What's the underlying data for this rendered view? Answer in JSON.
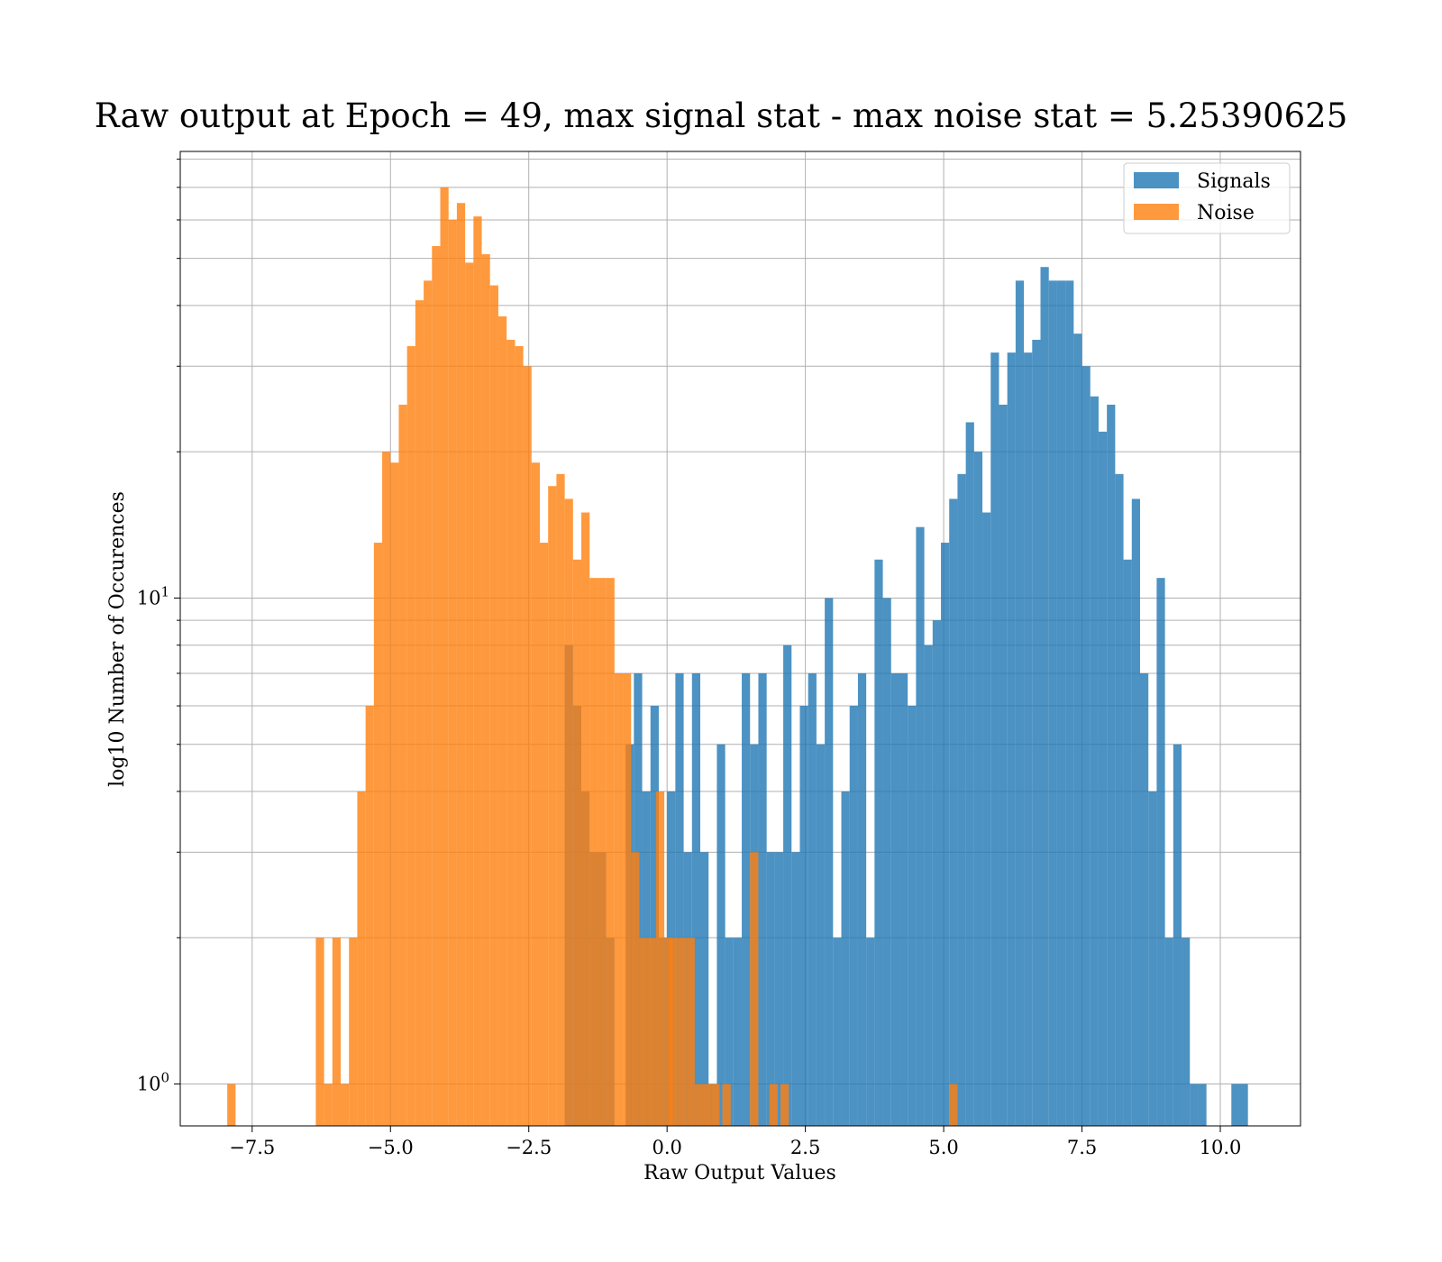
{
  "chart_data": {
    "type": "bar",
    "title": "Raw output at Epoch = 49, max signal stat - max noise stat = 5.25390625",
    "xlabel": "Raw Output Values",
    "ylabel": "log10 Number of Occurences",
    "xlim": [
      -8.8,
      11.45
    ],
    "ylim": [
      0.82,
      83
    ],
    "yscale": "log",
    "grid": true,
    "grid_minor_y": true,
    "x_ticks": [
      -7.5,
      -5.0,
      -2.5,
      0.0,
      2.5,
      5.0,
      7.5,
      10.0
    ],
    "x_tick_labels": [
      "−7.5",
      "−5.0",
      "−2.5",
      "0.0",
      "2.5",
      "5.0",
      "7.5",
      "10.0"
    ],
    "y_ticks": [
      {
        "value": 1,
        "base": "10",
        "exp": "0"
      },
      {
        "value": 10,
        "base": "10",
        "exp": "1"
      }
    ],
    "legend": {
      "position": "top-right"
    },
    "series": [
      {
        "name": "Signals",
        "color": "#1f77b4",
        "bins": [
          [
            -1.85,
            8
          ],
          [
            -1.7,
            6
          ],
          [
            -1.55,
            4
          ],
          [
            -1.4,
            3
          ],
          [
            -1.25,
            3
          ],
          [
            -1.1,
            2
          ],
          [
            -0.75,
            5
          ],
          [
            -0.6,
            7
          ],
          [
            -0.45,
            4
          ],
          [
            -0.3,
            6
          ],
          [
            -0.15,
            2
          ],
          [
            0.0,
            4
          ],
          [
            0.15,
            7
          ],
          [
            0.3,
            3
          ],
          [
            0.45,
            7
          ],
          [
            0.6,
            3
          ],
          [
            0.75,
            1
          ],
          [
            0.9,
            5
          ],
          [
            1.05,
            2
          ],
          [
            1.2,
            2
          ],
          [
            1.35,
            7
          ],
          [
            1.5,
            5
          ],
          [
            1.65,
            7
          ],
          [
            1.8,
            3
          ],
          [
            1.95,
            3
          ],
          [
            2.1,
            8
          ],
          [
            2.25,
            3
          ],
          [
            2.4,
            6
          ],
          [
            2.55,
            7
          ],
          [
            2.7,
            5
          ],
          [
            2.85,
            10
          ],
          [
            3.0,
            2
          ],
          [
            3.15,
            4
          ],
          [
            3.3,
            6
          ],
          [
            3.45,
            7
          ],
          [
            3.6,
            2
          ],
          [
            3.75,
            12
          ],
          [
            3.9,
            10
          ],
          [
            4.05,
            7
          ],
          [
            4.2,
            7
          ],
          [
            4.35,
            6
          ],
          [
            4.5,
            14
          ],
          [
            4.65,
            8
          ],
          [
            4.8,
            9
          ],
          [
            4.95,
            13
          ],
          [
            5.1,
            16
          ],
          [
            5.25,
            18
          ],
          [
            5.4,
            23
          ],
          [
            5.55,
            20
          ],
          [
            5.7,
            15
          ],
          [
            5.85,
            32
          ],
          [
            6.0,
            25
          ],
          [
            6.15,
            32
          ],
          [
            6.3,
            45
          ],
          [
            6.45,
            32
          ],
          [
            6.6,
            34
          ],
          [
            6.75,
            48
          ],
          [
            6.9,
            45
          ],
          [
            7.05,
            45
          ],
          [
            7.2,
            45
          ],
          [
            7.35,
            35
          ],
          [
            7.5,
            30
          ],
          [
            7.65,
            26
          ],
          [
            7.8,
            22
          ],
          [
            7.95,
            25
          ],
          [
            8.1,
            18
          ],
          [
            8.25,
            12
          ],
          [
            8.4,
            16
          ],
          [
            8.55,
            7
          ],
          [
            8.7,
            4
          ],
          [
            8.85,
            11
          ],
          [
            9.0,
            2
          ],
          [
            9.15,
            5
          ],
          [
            9.3,
            2
          ],
          [
            9.45,
            1
          ],
          [
            9.6,
            1
          ],
          [
            10.2,
            1
          ],
          [
            10.35,
            1
          ]
        ]
      },
      {
        "name": "Noise",
        "color": "#ff7f0e",
        "bins": [
          [
            -7.95,
            1
          ],
          [
            -6.35,
            2
          ],
          [
            -6.2,
            1
          ],
          [
            -6.05,
            2
          ],
          [
            -5.9,
            1
          ],
          [
            -5.75,
            2
          ],
          [
            -5.6,
            4
          ],
          [
            -5.45,
            6
          ],
          [
            -5.3,
            13
          ],
          [
            -5.15,
            20
          ],
          [
            -5.0,
            19
          ],
          [
            -4.85,
            25
          ],
          [
            -4.7,
            33
          ],
          [
            -4.55,
            41
          ],
          [
            -4.4,
            45
          ],
          [
            -4.25,
            53
          ],
          [
            -4.1,
            70
          ],
          [
            -3.95,
            60
          ],
          [
            -3.8,
            65
          ],
          [
            -3.65,
            49
          ],
          [
            -3.5,
            61
          ],
          [
            -3.35,
            51
          ],
          [
            -3.2,
            44
          ],
          [
            -3.05,
            38
          ],
          [
            -2.9,
            34
          ],
          [
            -2.75,
            33
          ],
          [
            -2.6,
            30
          ],
          [
            -2.45,
            19
          ],
          [
            -2.3,
            13
          ],
          [
            -2.15,
            17
          ],
          [
            -2.0,
            18
          ],
          [
            -1.85,
            16
          ],
          [
            -1.7,
            12
          ],
          [
            -1.55,
            15
          ],
          [
            -1.4,
            11
          ],
          [
            -1.25,
            11
          ],
          [
            -1.1,
            11
          ],
          [
            -0.95,
            7
          ],
          [
            -0.8,
            7
          ],
          [
            -0.65,
            3
          ],
          [
            -0.5,
            2
          ],
          [
            -0.35,
            2
          ],
          [
            -0.2,
            4
          ],
          [
            -0.05,
            2
          ],
          [
            0.05,
            2
          ],
          [
            0.2,
            2
          ],
          [
            0.35,
            2
          ],
          [
            0.5,
            1
          ],
          [
            0.65,
            1
          ],
          [
            0.8,
            1
          ],
          [
            1.0,
            1
          ],
          [
            1.5,
            3
          ],
          [
            1.85,
            1
          ],
          [
            2.05,
            1
          ],
          [
            5.1,
            1
          ]
        ]
      }
    ]
  }
}
